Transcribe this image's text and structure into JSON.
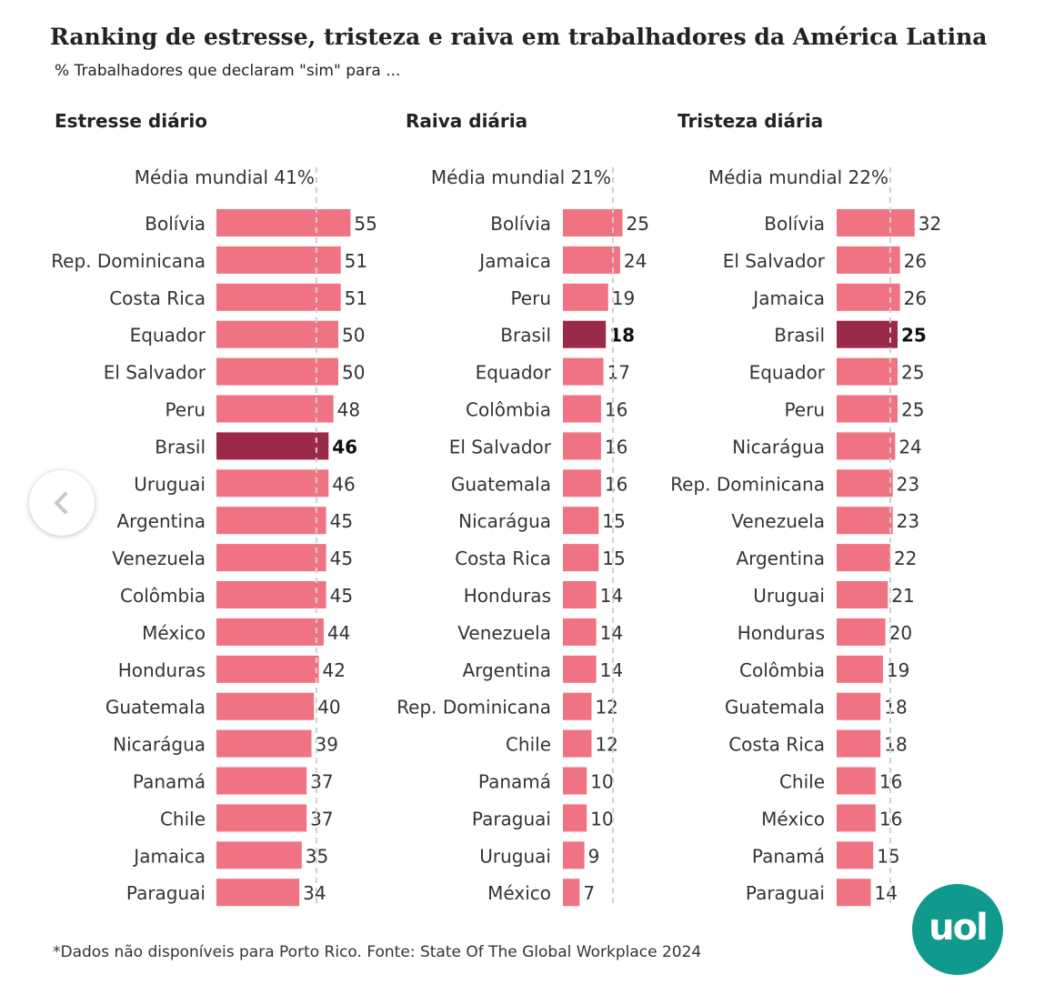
{
  "title": "Ranking de estresse, tristeza e raiva em trabalhadores da América Latina",
  "subtitle": "% Trabalhadores que declaram \"sim\" para ...",
  "footnote": "*Dados não disponíveis para Porto Rico. Fonte: State Of The Global Workplace 2024",
  "logo": {
    "text": "uol"
  },
  "colors": {
    "bar": "#f07383",
    "highlight": "#9a2a47",
    "avg_line": "#cfcfcf",
    "logo": "#0f9a8d"
  },
  "chart_data": [
    {
      "type": "bar",
      "title": "Estresse diário",
      "avg_label": "Média mundial 41%",
      "average": 41,
      "highlight": "Brasil",
      "categories": [
        "Bolívia",
        "Rep. Dominicana",
        "Costa Rica",
        "Equador",
        "El Salvador",
        "Peru",
        "Brasil",
        "Uruguai",
        "Argentina",
        "Venezuela",
        "Colômbia",
        "México",
        "Honduras",
        "Guatemala",
        "Nicarágua",
        "Panamá",
        "Chile",
        "Jamaica",
        "Paraguai"
      ],
      "values": [
        55,
        51,
        51,
        50,
        50,
        48,
        46,
        46,
        45,
        45,
        45,
        44,
        42,
        40,
        39,
        37,
        37,
        35,
        34
      ]
    },
    {
      "type": "bar",
      "title": "Raiva diária",
      "avg_label": "Média mundial 21%",
      "average": 21,
      "highlight": "Brasil",
      "categories": [
        "Bolívia",
        "Jamaica",
        "Peru",
        "Brasil",
        "Equador",
        "Colômbia",
        "El Salvador",
        "Guatemala",
        "Nicarágua",
        "Costa Rica",
        "Honduras",
        "Venezuela",
        "Argentina",
        "Rep. Dominicana",
        "Chile",
        "Panamá",
        "Paraguai",
        "Uruguai",
        "México"
      ],
      "values": [
        25,
        24,
        19,
        18,
        17,
        16,
        16,
        16,
        15,
        15,
        14,
        14,
        14,
        12,
        12,
        10,
        10,
        9,
        7
      ]
    },
    {
      "type": "bar",
      "title": "Tristeza diária",
      "avg_label": "Média mundial 22%",
      "average": 22,
      "highlight": "Brasil",
      "categories": [
        "Bolívia",
        "El Salvador",
        "Jamaica",
        "Brasil",
        "Equador",
        "Peru",
        "Nicarágua",
        "Rep. Dominicana",
        "Venezuela",
        "Argentina",
        "Uruguai",
        "Honduras",
        "Colômbia",
        "Guatemala",
        "Costa Rica",
        "Chile",
        "México",
        "Panamá",
        "Paraguai"
      ],
      "values": [
        32,
        26,
        26,
        25,
        25,
        25,
        24,
        23,
        23,
        22,
        21,
        20,
        19,
        18,
        18,
        16,
        16,
        15,
        14
      ]
    }
  ]
}
